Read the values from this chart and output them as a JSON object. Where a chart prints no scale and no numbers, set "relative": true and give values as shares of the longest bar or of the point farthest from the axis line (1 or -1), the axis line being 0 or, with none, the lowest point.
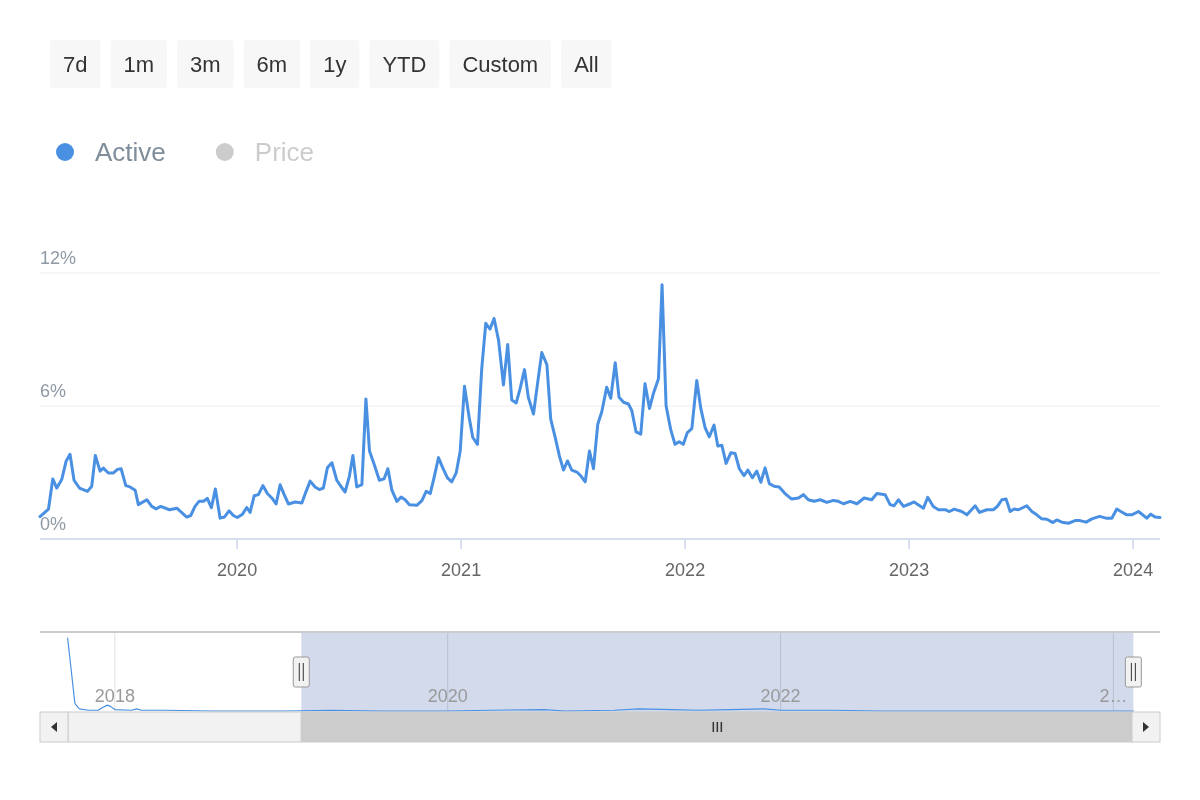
{
  "chart_data": [
    {
      "type": "line",
      "annotations": [
        "7d",
        "1m",
        "3m",
        "6m",
        "1y",
        "YTD",
        "Custom",
        "All"
      ],
      "legend": "top left",
      "grid": "y",
      "xlim": [
        2019.12,
        2024.12
      ],
      "xticks": [
        2020,
        2021,
        2022,
        2023,
        2024
      ],
      "ylim": [
        0,
        12
      ],
      "yticks": [
        {
          "value": 0,
          "label": "0%"
        },
        {
          "value": 6,
          "label": "6%"
        },
        {
          "value": 12,
          "label": "12%"
        }
      ],
      "x": [
        2019.12,
        2019.158,
        2019.177,
        2019.195,
        2019.217,
        2019.237,
        2019.254,
        2019.272,
        2019.296,
        2019.332,
        2019.351,
        2019.367,
        2019.388,
        2019.403,
        2019.425,
        2019.448,
        2019.466,
        2019.482,
        2019.503,
        2019.522,
        2019.545,
        2019.559,
        2019.597,
        2019.619,
        2019.638,
        2019.659,
        2019.698,
        2019.731,
        2019.775,
        2019.793,
        2019.812,
        2019.83,
        2019.85,
        2019.867,
        2019.885,
        2019.903,
        2019.924,
        2019.943,
        2019.964,
        2019.983,
        2020.001,
        2020.024,
        2020.043,
        2020.058,
        2020.076,
        2020.095,
        2020.115,
        2020.135,
        2020.155,
        2020.174,
        2020.192,
        2020.21,
        2020.229,
        2020.259,
        2020.289,
        2020.308,
        2020.326,
        2020.348,
        2020.367,
        2020.385,
        2020.403,
        2020.423,
        2020.445,
        2020.463,
        2020.482,
        2020.501,
        2020.517,
        2020.534,
        2020.557,
        2020.575,
        2020.591,
        2020.612,
        2020.635,
        2020.656,
        2020.673,
        2020.691,
        2020.713,
        2020.732,
        2020.75,
        2020.769,
        2020.802,
        2020.825,
        2020.844,
        2020.862,
        2020.879,
        2020.899,
        2020.918,
        2020.939,
        2020.958,
        2020.978,
        2020.996,
        2021.015,
        2021.036,
        2021.052,
        2021.073,
        2021.092,
        2021.11,
        2021.129,
        2021.147,
        2021.167,
        2021.189,
        2021.208,
        2021.226,
        2021.246,
        2021.263,
        2021.283,
        2021.3,
        2021.323,
        2021.341,
        2021.36,
        2021.383,
        2021.4,
        2021.42,
        2021.439,
        2021.457,
        2021.475,
        2021.494,
        2021.517,
        2021.536,
        2021.554,
        2021.573,
        2021.591,
        2021.61,
        2021.628,
        2021.65,
        2021.668,
        2021.688,
        2021.705,
        2021.725,
        2021.747,
        2021.762,
        2021.781,
        2021.802,
        2021.821,
        2021.841,
        2021.858,
        2021.881,
        2021.897,
        2021.915,
        2021.936,
        2021.955,
        2021.973,
        2021.992,
        2022.01,
        2022.03,
        2022.052,
        2022.07,
        2022.089,
        2022.108,
        2022.129,
        2022.146,
        2022.164,
        2022.183,
        2022.204,
        2022.223,
        2022.242,
        2022.263,
        2022.28,
        2022.3,
        2022.32,
        2022.338,
        2022.357,
        2022.376,
        2022.397,
        2022.42,
        2022.446,
        2022.476,
        2022.506,
        2022.528,
        2022.55,
        2022.576,
        2022.603,
        2022.633,
        2022.662,
        2022.684,
        2022.707,
        2022.737,
        2022.767,
        2022.799,
        2022.833,
        2022.856,
        2022.893,
        2022.915,
        2022.933,
        2022.952,
        2022.975,
        2023.004,
        2023.022,
        2023.064,
        2023.083,
        2023.108,
        2023.131,
        2023.161,
        2023.18,
        2023.201,
        2023.235,
        2023.258,
        2023.295,
        2023.314,
        2023.347,
        2023.376,
        2023.394,
        2023.414,
        2023.433,
        2023.451,
        2023.469,
        2023.488,
        2023.525,
        2023.548,
        2023.57,
        2023.592,
        2023.615,
        2023.642,
        2023.659,
        2023.682,
        2023.711,
        2023.741,
        2023.763,
        2023.79,
        2023.816,
        2023.85,
        2023.879,
        2023.905,
        2023.927,
        2023.945,
        2023.972,
        2023.994,
        2024.024,
        2024.061,
        2024.079,
        2024.098,
        2024.12
      ],
      "series": [
        {
          "name": "Active",
          "color": "#4a90e2",
          "values": [
            1.01,
            1.35,
            2.71,
            2.3,
            2.68,
            3.52,
            3.82,
            2.65,
            2.3,
            2.15,
            2.38,
            3.77,
            3.06,
            3.2,
            2.98,
            2.98,
            3.14,
            3.17,
            2.41,
            2.35,
            2.2,
            1.55,
            1.77,
            1.47,
            1.36,
            1.47,
            1.32,
            1.39,
            0.99,
            1.06,
            1.47,
            1.7,
            1.7,
            1.83,
            1.41,
            2.26,
            0.94,
            0.99,
            1.27,
            1.06,
            0.97,
            1.12,
            1.42,
            1.2,
            1.95,
            2.0,
            2.41,
            2.05,
            1.85,
            1.58,
            2.45,
            2.0,
            1.58,
            1.67,
            1.62,
            2.15,
            2.61,
            2.35,
            2.23,
            2.3,
            3.21,
            3.44,
            2.65,
            2.38,
            2.12,
            2.83,
            3.77,
            2.35,
            2.45,
            6.32,
            3.97,
            3.36,
            2.65,
            2.71,
            3.17,
            2.2,
            1.7,
            1.89,
            1.77,
            1.55,
            1.52,
            1.73,
            2.15,
            2.05,
            2.76,
            3.67,
            3.21,
            2.76,
            2.58,
            2.98,
            3.97,
            6.89,
            5.48,
            4.58,
            4.27,
            7.68,
            9.73,
            9.47,
            9.95,
            8.97,
            6.95,
            8.77,
            6.27,
            6.14,
            6.77,
            7.64,
            6.39,
            5.64,
            7.0,
            8.41,
            7.86,
            5.41,
            4.58,
            3.74,
            3.11,
            3.52,
            3.11,
            3.02,
            2.83,
            2.58,
            3.97,
            3.17,
            5.18,
            5.74,
            6.85,
            6.35,
            7.95,
            6.39,
            6.17,
            6.09,
            5.79,
            4.83,
            4.73,
            7.0,
            5.89,
            6.55,
            7.23,
            11.47,
            6.01,
            4.92,
            4.27,
            4.39,
            4.27,
            4.8,
            4.98,
            7.15,
            5.89,
            5.03,
            4.61,
            5.14,
            4.2,
            4.23,
            3.41,
            3.89,
            3.86,
            3.17,
            2.86,
            3.11,
            2.76,
            3.06,
            2.56,
            3.21,
            2.5,
            2.38,
            2.35,
            2.05,
            1.8,
            1.85,
            2.0,
            1.77,
            1.7,
            1.77,
            1.65,
            1.74,
            1.7,
            1.59,
            1.7,
            1.59,
            1.85,
            1.77,
            2.05,
            2.0,
            1.55,
            1.5,
            1.77,
            1.47,
            1.59,
            1.67,
            1.39,
            1.88,
            1.47,
            1.32,
            1.32,
            1.24,
            1.35,
            1.24,
            1.09,
            1.5,
            1.2,
            1.32,
            1.32,
            1.47,
            1.77,
            1.8,
            1.24,
            1.35,
            1.32,
            1.5,
            1.24,
            1.09,
            0.91,
            0.89,
            0.74,
            0.86,
            0.76,
            0.71,
            0.83,
            0.83,
            0.76,
            0.91,
            1.02,
            0.94,
            0.94,
            1.35,
            1.24,
            1.09,
            1.09,
            1.24,
            0.94,
            1.12,
            0.99,
            0.97
          ]
        },
        {
          "name": "Price",
          "color": "#cccccc",
          "values": [
            null,
            null,
            null,
            null,
            null,
            null,
            null,
            null,
            null,
            null,
            null,
            null,
            null,
            null,
            null,
            null,
            null,
            null,
            null,
            null,
            null,
            null,
            null,
            null,
            null,
            null,
            null,
            null,
            null,
            null,
            null,
            null,
            null,
            null,
            null,
            null,
            null,
            null,
            null,
            null,
            null,
            null,
            null,
            null,
            null,
            null,
            null,
            null,
            null,
            null,
            null,
            null,
            null,
            null,
            null,
            null,
            null,
            null,
            null,
            null,
            null,
            null,
            null,
            null,
            null,
            null,
            null,
            null,
            null,
            null,
            null,
            null,
            null,
            null,
            null,
            null,
            null,
            null,
            null,
            null,
            null,
            null,
            null,
            null,
            null,
            null,
            null,
            null,
            null,
            null,
            null,
            null,
            null,
            null,
            null,
            null,
            null,
            null,
            null,
            null,
            null,
            null,
            null,
            null,
            null,
            null,
            null,
            null,
            null,
            null,
            null,
            null,
            null,
            null,
            null,
            null,
            null,
            null,
            null,
            null,
            null,
            null,
            null,
            null,
            null,
            null,
            null,
            null,
            null,
            null,
            null,
            null,
            null,
            null,
            null,
            null,
            null,
            null,
            null,
            null,
            null,
            null,
            null,
            null,
            null,
            null,
            null,
            null,
            null,
            null,
            null,
            null,
            null,
            null,
            null,
            null,
            null,
            null,
            null,
            null,
            null,
            null,
            null,
            null,
            null,
            null,
            null,
            null,
            null,
            null,
            null,
            null,
            null,
            null,
            null,
            null,
            null,
            null,
            null,
            null,
            null,
            null,
            null,
            null,
            null,
            null,
            null,
            null,
            null,
            null,
            null,
            null,
            null,
            null,
            null,
            null,
            null,
            null,
            null,
            null,
            null,
            null,
            null,
            null,
            null,
            null,
            null,
            null,
            null,
            null,
            null,
            null,
            null,
            null,
            null,
            null,
            null,
            null,
            null,
            null,
            null,
            null,
            null,
            null,
            null,
            null,
            null,
            null,
            null,
            null,
            null,
            null
          ]
        }
      ]
    },
    {
      "type": "line",
      "relative": true,
      "grid": "x",
      "color": "#4a90e2",
      "xlim": [
        2017.55,
        2024.28
      ],
      "xticks": [
        2018,
        2020,
        2022,
        {
          "value": 2024,
          "label": "2…"
        }
      ],
      "bands": [
        {
          "axis": "x",
          "from": 2019.12,
          "to": 2024.12,
          "color": "#d2daec"
        }
      ],
      "x": [
        2017.716,
        2017.76,
        2017.786,
        2017.84,
        2017.9,
        2017.92,
        2017.955,
        2017.975,
        2018.0,
        2018.1,
        2018.13,
        2018.16,
        2018.3,
        2018.6,
        2019.0,
        2019.3,
        2019.6,
        2020.0,
        2020.25,
        2020.58,
        2020.7,
        2021.0,
        2021.15,
        2021.35,
        2021.5,
        2021.7,
        2021.9,
        2022.0,
        2022.3,
        2022.6,
        2023.0,
        2023.6,
        2024.12
      ],
      "values": [
        1,
        0.1,
        0.03,
        0.01,
        0.01,
        0.04,
        0.08,
        0.06,
        0.02,
        0.01,
        0.03,
        0.01,
        0.01,
        0,
        0,
        0.01,
        0,
        0,
        0.01,
        0.02,
        0,
        0.01,
        0.03,
        0.02,
        0.01,
        0.02,
        0.03,
        0.01,
        0.01,
        0,
        0,
        0,
        0
      ]
    }
  ]
}
